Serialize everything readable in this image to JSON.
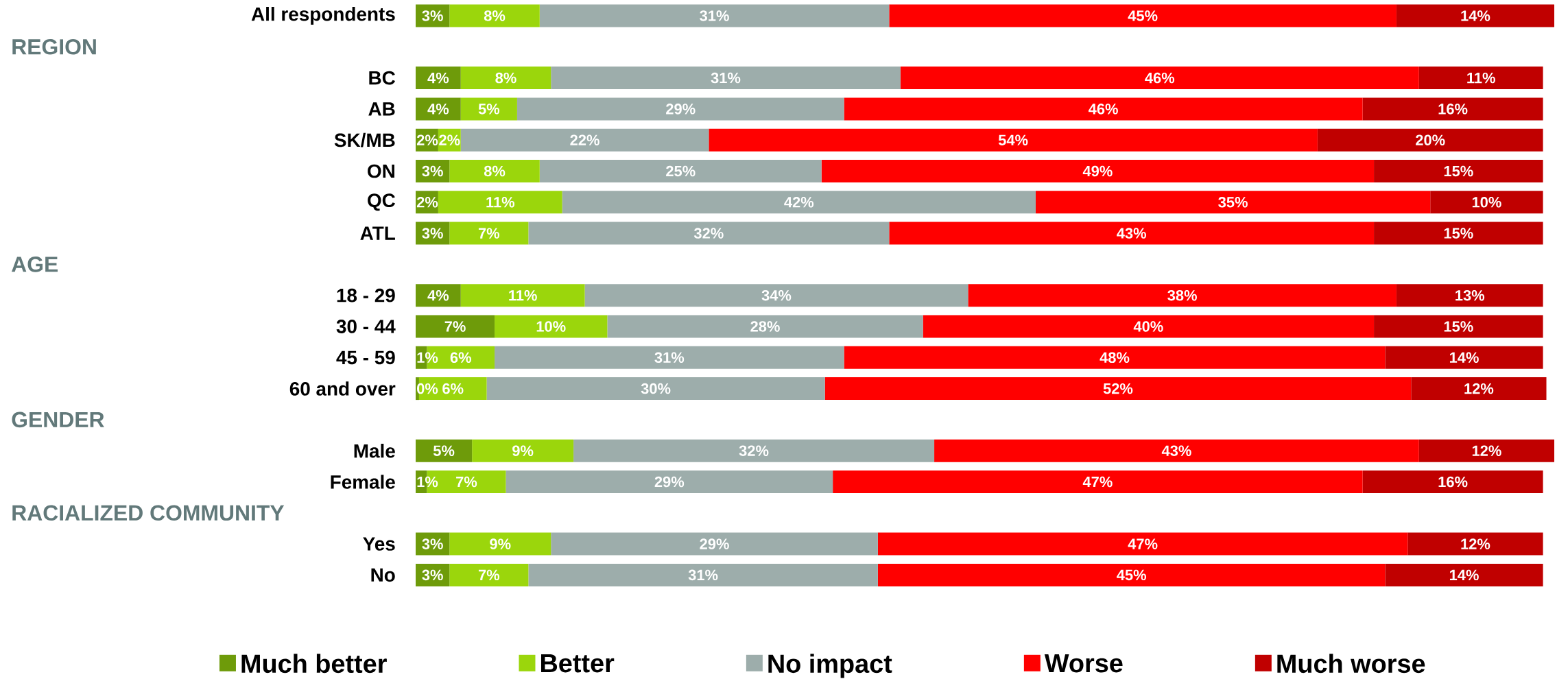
{
  "chart_data": {
    "type": "bar",
    "orientation": "horizontal",
    "stacked": true,
    "categories": [
      "All respondents",
      null,
      "BC",
      "AB",
      "SK/MB",
      "ON",
      "QC",
      "ATL",
      null,
      "18 - 29",
      "30 - 44",
      "45 - 59",
      "60 and over",
      null,
      "Male",
      "Female",
      null,
      "Yes",
      "No"
    ],
    "series": [
      {
        "name": "Much better",
        "color": "#6e9b0a",
        "values": [
          3,
          null,
          4,
          4,
          2,
          3,
          2,
          3,
          null,
          4,
          7,
          1,
          0.3,
          null,
          5,
          1,
          null,
          3,
          3
        ],
        "value_labels": [
          "3%",
          null,
          "4%",
          "4%",
          "2%",
          "3%",
          "2%",
          "3%",
          null,
          "4%",
          "7%",
          "1%",
          "0%",
          null,
          "5%",
          "1%",
          null,
          "3%",
          "3%"
        ]
      },
      {
        "name": "Better",
        "color": "#9bd60c",
        "values": [
          8,
          null,
          8,
          5,
          2,
          8,
          11,
          7,
          null,
          11,
          10,
          6,
          6,
          null,
          9,
          7,
          null,
          9,
          7
        ],
        "value_labels": [
          "8%",
          null,
          "8%",
          "5%",
          "2%",
          "8%",
          "11%",
          "7%",
          null,
          "11%",
          "10%",
          "6%",
          "6%",
          null,
          "9%",
          "7%",
          null,
          "9%",
          "7%"
        ]
      },
      {
        "name": "No impact",
        "color": "#9dadab",
        "values": [
          31,
          null,
          31,
          29,
          22,
          25,
          42,
          32,
          null,
          34,
          28,
          31,
          30,
          null,
          32,
          29,
          null,
          29,
          31
        ],
        "value_labels": [
          "31%",
          null,
          "31%",
          "29%",
          "22%",
          "25%",
          "42%",
          "32%",
          null,
          "34%",
          "28%",
          "31%",
          "30%",
          null,
          "32%",
          "29%",
          null,
          "29%",
          "31%"
        ]
      },
      {
        "name": "Worse",
        "color": "#ff0000",
        "values": [
          45,
          null,
          46,
          46,
          54,
          49,
          35,
          43,
          null,
          38,
          40,
          48,
          52,
          null,
          43,
          47,
          null,
          47,
          45
        ],
        "value_labels": [
          "45%",
          null,
          "46%",
          "46%",
          "54%",
          "49%",
          "35%",
          "43%",
          null,
          "38%",
          "40%",
          "48%",
          "52%",
          null,
          "43%",
          "47%",
          null,
          "47%",
          "45%"
        ]
      },
      {
        "name": "Much worse",
        "color": "#c00000",
        "values": [
          14,
          null,
          11,
          16,
          20,
          15,
          10,
          15,
          null,
          13,
          15,
          14,
          12,
          null,
          12,
          16,
          null,
          12,
          14
        ],
        "value_labels": [
          "14%",
          null,
          "11%",
          "16%",
          "20%",
          "15%",
          "10%",
          "15%",
          null,
          "13%",
          "15%",
          "14%",
          "12%",
          null,
          "12%",
          "16%",
          null,
          "12%",
          "14%"
        ]
      }
    ],
    "annotations": [
      "REGION",
      "AGE",
      "GENDER",
      "RACIALIZED COMMUNITY"
    ],
    "legend": "bottom",
    "tick_labels": "y"
  }
}
